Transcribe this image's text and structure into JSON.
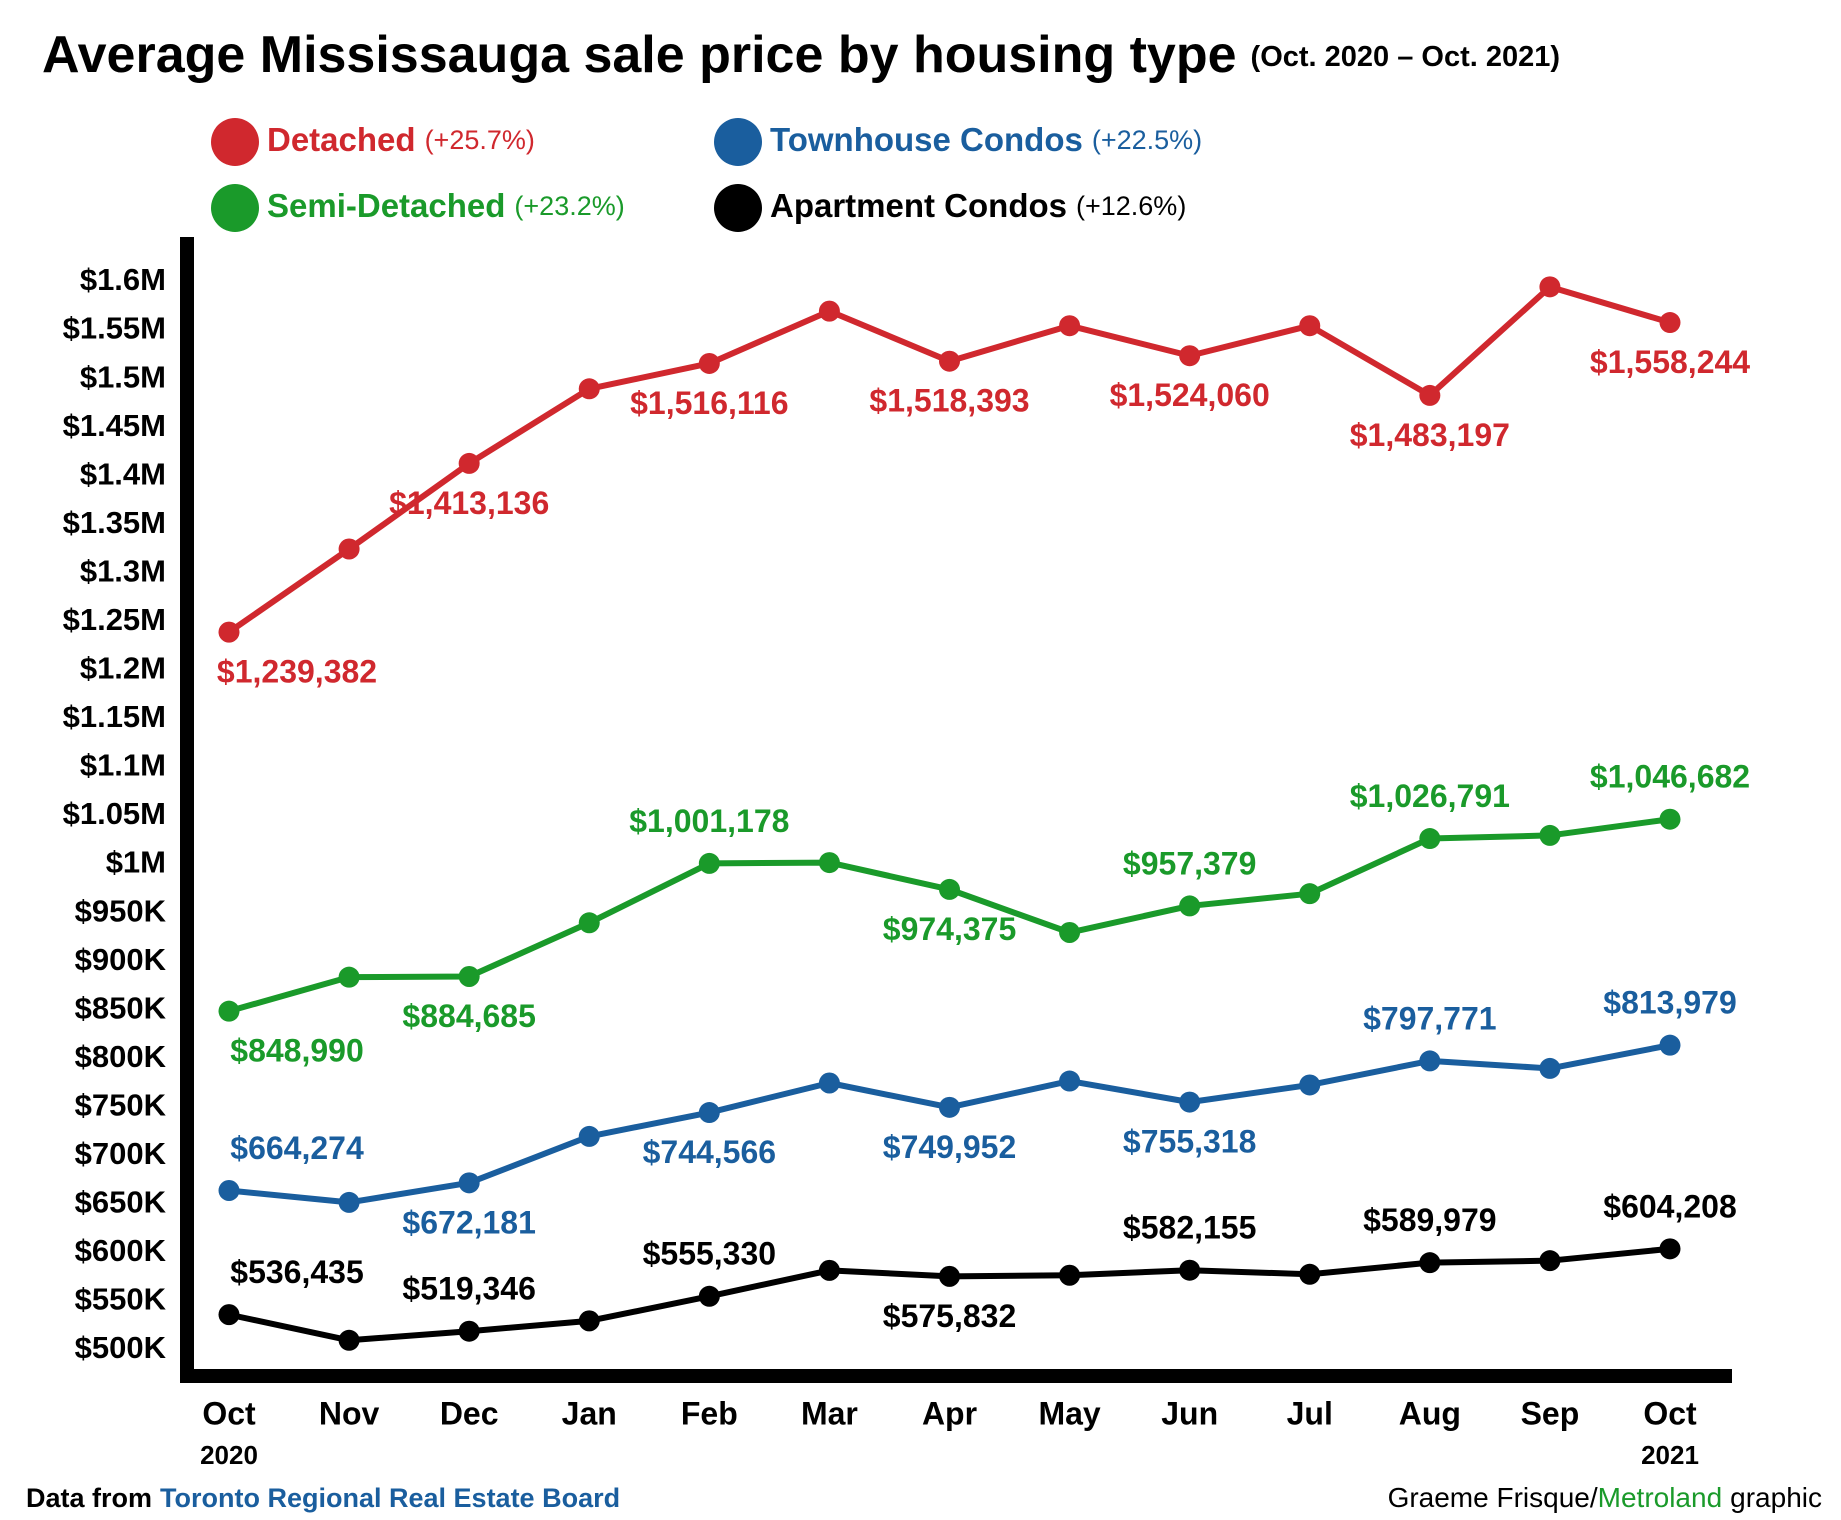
{
  "chart_data": {
    "type": "line",
    "title": "Average Mississauga sale price by housing type",
    "subtitle": "(Oct. 2020 – Oct. 2021)",
    "categories": [
      "Oct",
      "Nov",
      "Dec",
      "Jan",
      "Feb",
      "Mar",
      "Apr",
      "May",
      "Jun",
      "Jul",
      "Aug",
      "Sep",
      "Oct"
    ],
    "start_year": "2020",
    "end_year": "2021",
    "series": [
      {
        "name": "Detached",
        "change": "(+25.7%)",
        "color": "#d0282e",
        "values": [
          1239382,
          1325000,
          1413136,
          1490000,
          1516116,
          1570000,
          1518393,
          1555000,
          1524060,
          1555000,
          1483197,
          1595000,
          1558244
        ],
        "value_labels": [
          "$1,239,382",
          null,
          "$1,413,136",
          null,
          "$1,516,116",
          null,
          "$1,518,393",
          null,
          "$1,524,060",
          null,
          "$1,483,197",
          null,
          "$1,558,244"
        ]
      },
      {
        "name": "Semi-Detached",
        "change": "(+23.2%)",
        "color": "#1a9a2a",
        "values": [
          848990,
          884000,
          884685,
          940000,
          1001178,
          1002000,
          974375,
          930000,
          957379,
          970000,
          1026791,
          1030000,
          1046682
        ],
        "value_labels": [
          "$848,990",
          null,
          "$884,685",
          null,
          "$1,001,178",
          null,
          "$974,375",
          null,
          "$957,379",
          null,
          "$1,026,791",
          null,
          "$1,046,682"
        ]
      },
      {
        "name": "Townhouse Condos",
        "change": "(+22.5%)",
        "color": "#1a5e9e",
        "values": [
          664274,
          652000,
          672181,
          720000,
          744566,
          775000,
          749952,
          777000,
          755318,
          773000,
          797771,
          790000,
          813979
        ],
        "value_labels": [
          "$664,274",
          null,
          "$672,181",
          null,
          "$744,566",
          null,
          "$749,952",
          null,
          "$755,318",
          null,
          "$797,771",
          null,
          "$813,979"
        ]
      },
      {
        "name": "Apartment Condos",
        "change": "(+12.6%)",
        "color": "#000000",
        "values": [
          536435,
          510000,
          519346,
          530000,
          555330,
          582000,
          575832,
          577000,
          582155,
          578000,
          589979,
          592000,
          604208
        ],
        "value_labels": [
          "$536,435",
          null,
          "$519,346",
          null,
          "$555,330",
          null,
          "$575,832",
          null,
          "$582,155",
          null,
          "$589,979",
          null,
          "$604,208"
        ]
      }
    ],
    "ylim": [
      500000,
      1600000
    ],
    "yticks": [
      {
        "value": 500000,
        "label": "$500K"
      },
      {
        "value": 550000,
        "label": "$550K"
      },
      {
        "value": 600000,
        "label": "$600K"
      },
      {
        "value": 650000,
        "label": "$650K"
      },
      {
        "value": 700000,
        "label": "$700K"
      },
      {
        "value": 750000,
        "label": "$750K"
      },
      {
        "value": 800000,
        "label": "$800K"
      },
      {
        "value": 850000,
        "label": "$850K"
      },
      {
        "value": 900000,
        "label": "$900K"
      },
      {
        "value": 950000,
        "label": "$950K"
      },
      {
        "value": 1000000,
        "label": "$1M"
      },
      {
        "value": 1050000,
        "label": "$1.05M"
      },
      {
        "value": 1100000,
        "label": "$1.1M"
      },
      {
        "value": 1150000,
        "label": "$1.15M"
      },
      {
        "value": 1200000,
        "label": "$1.2M"
      },
      {
        "value": 1250000,
        "label": "$1.25M"
      },
      {
        "value": 1300000,
        "label": "$1.3M"
      },
      {
        "value": 1350000,
        "label": "$1.35M"
      },
      {
        "value": 1400000,
        "label": "$1.4M"
      },
      {
        "value": 1450000,
        "label": "$1.45M"
      },
      {
        "value": 1500000,
        "label": "$1.5M"
      },
      {
        "value": 1550000,
        "label": "$1.55M"
      },
      {
        "value": 1600000,
        "label": "$1.6M"
      }
    ],
    "grid": false,
    "source_prefix": "Data from",
    "source": "Toronto Regional Real Estate Board",
    "credit_author": "Graeme Frisque/",
    "credit_outlet": "Metroland",
    "credit_suffix": "graphic"
  }
}
